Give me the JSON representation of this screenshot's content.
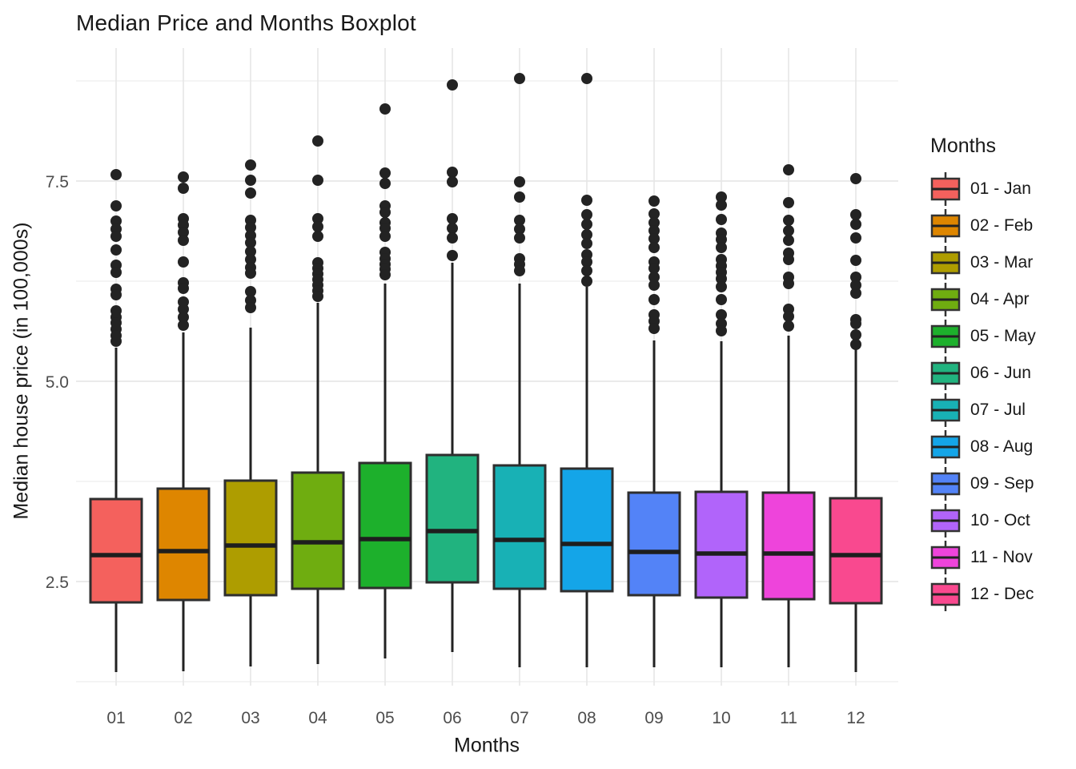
{
  "title": "Median Price and Months Boxplot",
  "x_axis": {
    "label": "Months"
  },
  "y_axis": {
    "label": "Median house price (in 100,000s)",
    "tick_labels": [
      "2.5",
      "5.0",
      "7.5"
    ],
    "tick_values": [
      2.5,
      5.0,
      7.5
    ]
  },
  "legend": {
    "title": "Months"
  },
  "chart_data": {
    "type": "boxplot",
    "title": "Median Price and Months Boxplot",
    "xlabel": "Months",
    "ylabel": "Median house price (in 100,000s)",
    "ylim": [
      1.2,
      9.2
    ],
    "y_major_ticks": [
      2.5,
      5.0,
      7.5
    ],
    "y_minor_gridlines": [
      1.25,
      3.75,
      6.25,
      8.75
    ],
    "grid": "major+minor, horizontal and vertical, light gray on white",
    "legend_position": "right",
    "point_color": "#232323",
    "outline_color": "#2e2e2e",
    "boxes": [
      {
        "category": "01",
        "legend_label": "01 - Jan",
        "color": "#F4615D",
        "whisker_low": 1.37,
        "q1": 2.24,
        "median": 2.83,
        "q3": 3.53,
        "whisker_high": 5.42,
        "outliers": [
          7.58,
          7.19,
          7.0,
          6.9,
          6.81,
          6.64,
          6.45,
          6.36,
          6.15,
          6.08,
          5.88,
          5.8,
          5.73,
          5.65,
          5.57,
          5.5
        ]
      },
      {
        "category": "02",
        "legend_label": "02 - Feb",
        "color": "#DE8600",
        "whisker_low": 1.38,
        "q1": 2.27,
        "median": 2.88,
        "q3": 3.66,
        "whisker_high": 5.61,
        "outliers": [
          7.55,
          7.41,
          7.03,
          6.95,
          6.86,
          6.76,
          6.49,
          6.23,
          6.16,
          5.99,
          5.9,
          5.8,
          5.7
        ]
      },
      {
        "category": "03",
        "legend_label": "03 - Mar",
        "color": "#AE9D00",
        "whisker_low": 1.44,
        "q1": 2.33,
        "median": 2.95,
        "q3": 3.76,
        "whisker_high": 5.67,
        "outliers": [
          7.7,
          7.51,
          7.35,
          7.01,
          6.92,
          6.82,
          6.73,
          6.62,
          6.52,
          6.42,
          6.35,
          6.12,
          6.01,
          5.92
        ]
      },
      {
        "category": "04",
        "legend_label": "04 - Apr",
        "color": "#6FAD10",
        "whisker_low": 1.47,
        "q1": 2.41,
        "median": 2.99,
        "q3": 3.86,
        "whisker_high": 5.98,
        "outliers": [
          8.0,
          7.51,
          7.03,
          6.93,
          6.81,
          6.48,
          6.41,
          6.34,
          6.27,
          6.2,
          6.13,
          6.06
        ]
      },
      {
        "category": "05",
        "legend_label": "05 - May",
        "color": "#1DB02C",
        "whisker_low": 1.54,
        "q1": 2.42,
        "median": 3.03,
        "q3": 3.98,
        "whisker_high": 6.22,
        "outliers": [
          8.4,
          7.6,
          7.47,
          7.19,
          7.11,
          6.98,
          6.91,
          6.81,
          6.61,
          6.53,
          6.46,
          6.4,
          6.33
        ]
      },
      {
        "category": "06",
        "legend_label": "06 - Jun",
        "color": "#21B37F",
        "whisker_low": 1.62,
        "q1": 2.49,
        "median": 3.13,
        "q3": 4.08,
        "whisker_high": 6.48,
        "outliers": [
          8.7,
          7.61,
          7.49,
          7.03,
          6.91,
          6.79,
          6.57
        ]
      },
      {
        "category": "07",
        "legend_label": "07 - Jul",
        "color": "#18B1B5",
        "whisker_low": 1.43,
        "q1": 2.41,
        "median": 3.02,
        "q3": 3.95,
        "whisker_high": 6.22,
        "outliers": [
          8.78,
          7.49,
          7.3,
          7.01,
          6.9,
          6.79,
          6.53,
          6.46,
          6.38
        ]
      },
      {
        "category": "08",
        "legend_label": "08 - Aug",
        "color": "#14A5E8",
        "whisker_low": 1.43,
        "q1": 2.38,
        "median": 2.97,
        "q3": 3.91,
        "whisker_high": 6.18,
        "outliers": [
          8.78,
          7.26,
          7.08,
          6.96,
          6.83,
          6.72,
          6.58,
          6.49,
          6.38,
          6.25
        ]
      },
      {
        "category": "09",
        "legend_label": "09 - Sep",
        "color": "#5383F7",
        "whisker_low": 1.43,
        "q1": 2.33,
        "median": 2.87,
        "q3": 3.61,
        "whisker_high": 5.51,
        "outliers": [
          7.25,
          7.09,
          6.98,
          6.88,
          6.78,
          6.67,
          6.49,
          6.41,
          6.3,
          6.2,
          6.02,
          5.83,
          5.75,
          5.66
        ]
      },
      {
        "category": "10",
        "legend_label": "10 - Oct",
        "color": "#B164FA",
        "whisker_low": 1.43,
        "q1": 2.3,
        "median": 2.85,
        "q3": 3.62,
        "whisker_high": 5.5,
        "outliers": [
          7.3,
          7.2,
          7.02,
          6.85,
          6.77,
          6.67,
          6.52,
          6.44,
          6.36,
          6.28,
          6.18,
          6.02,
          5.83,
          5.72,
          5.63
        ]
      },
      {
        "category": "11",
        "legend_label": "11 - Nov",
        "color": "#EE44DB",
        "whisker_low": 1.43,
        "q1": 2.28,
        "median": 2.85,
        "q3": 3.61,
        "whisker_high": 5.57,
        "outliers": [
          7.64,
          7.23,
          7.01,
          6.88,
          6.76,
          6.6,
          6.52,
          6.3,
          6.22,
          5.9,
          5.81,
          5.69
        ]
      },
      {
        "category": "12",
        "legend_label": "12 - Dec",
        "color": "#F9498F",
        "whisker_low": 1.37,
        "q1": 2.23,
        "median": 2.83,
        "q3": 3.54,
        "whisker_high": 5.43,
        "outliers": [
          7.53,
          7.08,
          6.96,
          6.79,
          6.51,
          6.3,
          6.2,
          6.1,
          5.77,
          5.72,
          5.58,
          5.46
        ]
      }
    ]
  }
}
